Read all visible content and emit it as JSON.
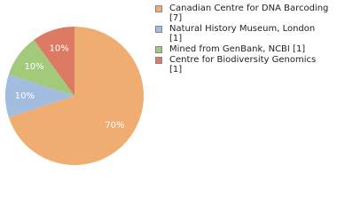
{
  "chart_data": {
    "type": "pie",
    "categories": [
      "Canadian Centre for DNA Barcoding [7]",
      "Natural History Museum, London [1]",
      "Mined from GenBank, NCBI [1]",
      "Centre for Biodiversity Genomics [1]"
    ],
    "values": [
      70,
      10,
      10,
      10
    ],
    "value_labels": [
      "70%",
      "10%",
      "10%",
      "10%"
    ],
    "colors": [
      "#f0ad71",
      "#a2bde0",
      "#a3c97b",
      "#dd7a63"
    ]
  }
}
